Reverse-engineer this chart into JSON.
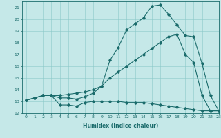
{
  "xlabel": "Humidex (Indice chaleur)",
  "ylabel": "",
  "xlim": [
    -0.5,
    23
  ],
  "ylim": [
    12,
    21.5
  ],
  "xticks": [
    0,
    1,
    2,
    3,
    4,
    5,
    6,
    7,
    8,
    9,
    10,
    11,
    12,
    13,
    14,
    15,
    16,
    17,
    18,
    19,
    20,
    21,
    22,
    23
  ],
  "yticks": [
    12,
    13,
    14,
    15,
    16,
    17,
    18,
    19,
    20,
    21
  ],
  "bg_color": "#c5e8e8",
  "line_color": "#1a6b6b",
  "curve1_x": [
    0,
    1,
    2,
    3,
    4,
    5,
    6,
    7,
    8,
    9,
    10,
    11,
    12,
    13,
    14,
    15,
    16,
    17,
    18,
    19,
    20,
    21,
    22,
    23
  ],
  "curve1_y": [
    13.1,
    13.3,
    13.5,
    13.5,
    12.7,
    12.7,
    12.6,
    12.9,
    13.0,
    13.0,
    13.0,
    13.0,
    12.9,
    12.9,
    12.9,
    12.8,
    12.7,
    12.6,
    12.5,
    12.4,
    12.3,
    12.2,
    12.2,
    12.2
  ],
  "curve2_x": [
    0,
    1,
    2,
    3,
    4,
    5,
    6,
    7,
    8,
    9,
    10,
    11,
    12,
    13,
    14,
    15,
    16,
    17,
    18,
    19,
    20,
    21,
    22,
    23
  ],
  "curve2_y": [
    13.1,
    13.3,
    13.5,
    13.5,
    13.5,
    13.6,
    13.7,
    13.8,
    14.0,
    14.3,
    15.0,
    15.5,
    16.0,
    16.5,
    17.0,
    17.5,
    18.0,
    18.5,
    18.7,
    17.0,
    16.3,
    13.5,
    12.2,
    12.2
  ],
  "curve3_x": [
    0,
    1,
    2,
    3,
    4,
    5,
    6,
    7,
    8,
    9,
    10,
    11,
    12,
    13,
    14,
    15,
    16,
    17,
    18,
    19,
    20,
    21,
    22,
    23
  ],
  "curve3_y": [
    13.1,
    13.3,
    13.5,
    13.5,
    13.3,
    13.3,
    13.2,
    13.4,
    13.7,
    14.3,
    16.5,
    17.6,
    19.1,
    19.6,
    20.1,
    21.1,
    21.2,
    20.4,
    19.5,
    18.6,
    18.5,
    16.2,
    13.5,
    12.2
  ],
  "xlabel_fontsize": 5.5,
  "tick_fontsize": 4.5,
  "marker_size": 1.8,
  "line_width": 0.8,
  "grid_color": "#8ac8c8",
  "grid_lw": 0.4
}
